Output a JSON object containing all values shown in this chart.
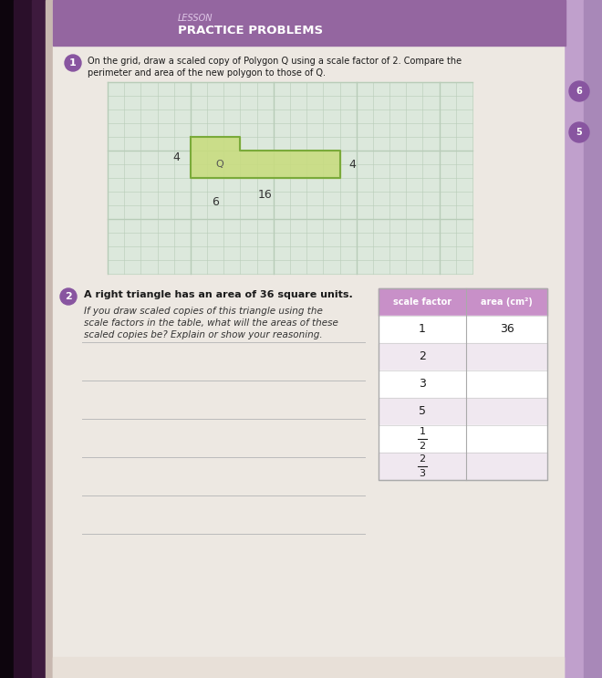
{
  "lesson_label": "LESSON",
  "section_title": "PRACTICE PROBLEMS",
  "header_color": "#9466a0",
  "header_text_color": "#ffffff",
  "page_bg_left": "#1a0a1a",
  "page_bg_dark": "#3a1a3a",
  "page_bg_main": "#ede8e2",
  "page_bg_right": "#c8a8d0",
  "q1_number": "1",
  "q1_circle_color": "#8855a0",
  "q1_text_line1": "On the grid, draw a scaled copy of Polygon Q using a scale factor of 2. Compare the",
  "q1_text_line2": "perimeter and area of the new polygon to those of Q.",
  "grid_bg": "#dce8dc",
  "grid_line_color": "#b8ccb8",
  "grid_cols": 22,
  "grid_rows": 14,
  "polygon_fill": "#c8dc80",
  "polygon_stroke": "#7aaa3a",
  "label_4_left": "4",
  "label_4_right": "4",
  "label_16": "16",
  "label_6": "6",
  "label_Q": "Q",
  "q2_number": "2",
  "q2_circle_color": "#8855a0",
  "q2_bold": "A right triangle has an area of 36 square units.",
  "q2_normal_line1": "If you draw scaled copies of this triangle using the",
  "q2_normal_line2": "scale factors in the table, what will the areas of these",
  "q2_normal_line3": "scaled copies be? Explain or show your reasoning.",
  "table_header_bg": "#c890c8",
  "table_header_text": "#ffffff",
  "table_col1_header": "scale factor",
  "table_col2_header": "area (cm²)",
  "table_row_bg_odd": "#ffffff",
  "table_row_bg_even": "#f0e8f0",
  "scale_factors": [
    "1",
    "2",
    "3",
    "5",
    "1/2",
    "2/3"
  ],
  "area_col1": [
    "36",
    "",
    "",
    "",
    "",
    ""
  ],
  "line_color": "#bbbbbb",
  "text_dark": "#1a1a1a",
  "text_medium": "#333333"
}
